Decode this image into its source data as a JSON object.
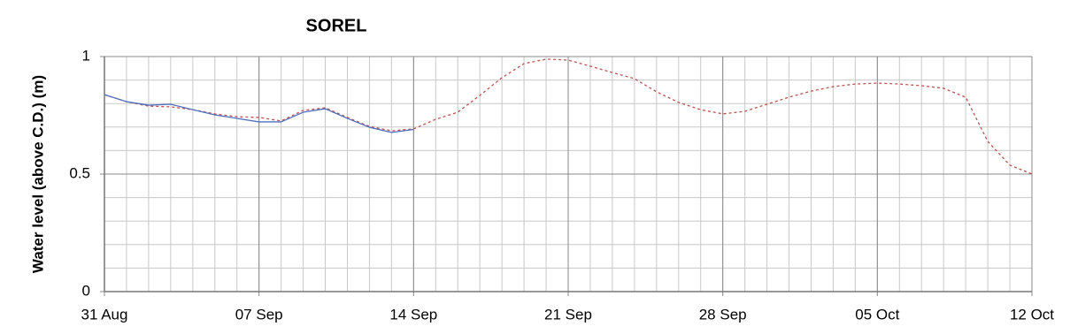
{
  "chart_data": {
    "type": "line",
    "title": "SOREL",
    "y_label": "Water level (above C.D.) (m)",
    "x": [
      0,
      1,
      2,
      3,
      4,
      5,
      6,
      7,
      8,
      9,
      10,
      11,
      12,
      13,
      14,
      15,
      16,
      17,
      18,
      19,
      20,
      21,
      22,
      23,
      24,
      25,
      26,
      27,
      28,
      29,
      30,
      31,
      32,
      33,
      34,
      35,
      36,
      37,
      38,
      39,
      40,
      41,
      42
    ],
    "xlim": [
      0,
      42
    ],
    "xticks": [
      {
        "value": 0,
        "label": "31 Aug"
      },
      {
        "value": 7,
        "label": "07 Sep"
      },
      {
        "value": 14,
        "label": "14 Sep"
      },
      {
        "value": 21,
        "label": "21 Sep"
      },
      {
        "value": 28,
        "label": "28 Sep"
      },
      {
        "value": 35,
        "label": "05 Oct"
      },
      {
        "value": 42,
        "label": "12 Oct"
      }
    ],
    "ylim": [
      0,
      1
    ],
    "yticks": [
      0,
      0.5,
      1
    ],
    "grid": {
      "x_step": 1,
      "y_step": 0.1
    },
    "series": [
      {
        "color": "#c0504d",
        "style": "dashed",
        "values": [
          0.838,
          0.808,
          0.789,
          0.786,
          0.774,
          0.756,
          0.744,
          0.741,
          0.726,
          0.771,
          0.782,
          0.741,
          0.703,
          0.684,
          0.692,
          0.733,
          0.763,
          0.835,
          0.91,
          0.97,
          0.989,
          0.985,
          0.959,
          0.932,
          0.906,
          0.85,
          0.805,
          0.774,
          0.756,
          0.767,
          0.797,
          0.827,
          0.853,
          0.872,
          0.883,
          0.887,
          0.883,
          0.876,
          0.865,
          0.827,
          0.639,
          0.538,
          0.5
        ]
      },
      {
        "color": "#4f6fbd",
        "style": "solid",
        "values": [
          0.838,
          0.808,
          0.793,
          0.797,
          0.774,
          0.752,
          0.737,
          0.722,
          0.722,
          0.763,
          0.778,
          0.737,
          0.699,
          0.677,
          0.69,
          null,
          null,
          null,
          null,
          null,
          null,
          null,
          null,
          null,
          null,
          null,
          null,
          null,
          null,
          null,
          null,
          null,
          null,
          null,
          null,
          null,
          null,
          null,
          null,
          null,
          null,
          null,
          null
        ]
      }
    ]
  }
}
